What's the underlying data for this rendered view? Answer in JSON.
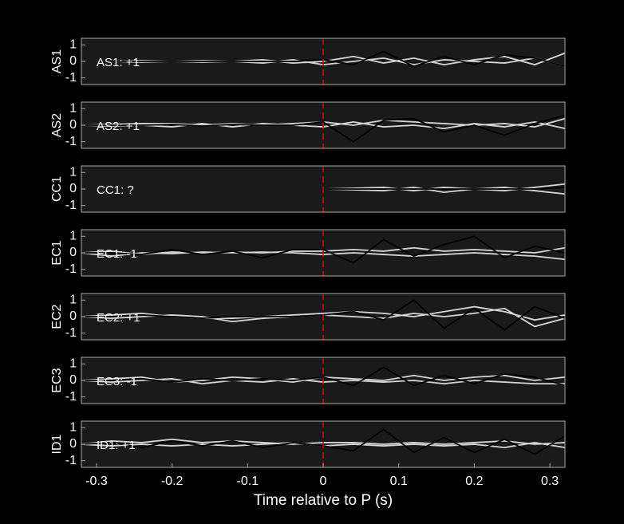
{
  "chart_data": [
    {
      "type": "line",
      "ylabel": "AS1",
      "annotation": "AS1: +1",
      "annotation_color": "#cc2020",
      "vline": 0,
      "vline_color": "#dd0000",
      "x": [
        -0.32,
        -0.28,
        -0.24,
        -0.2,
        -0.16,
        -0.12,
        -0.08,
        -0.04,
        0,
        0.04,
        0.08,
        0.12,
        0.16,
        0.2,
        0.24,
        0.28,
        0.32
      ],
      "xlim": [
        -0.32,
        0.32
      ],
      "ylim": [
        -1.4,
        1.4
      ],
      "yticks": [
        -1,
        0,
        1
      ],
      "series": [
        {
          "color": "#d6d6d6",
          "values": [
            0,
            0,
            0.05,
            0,
            -0.05,
            0,
            0.1,
            -0.1,
            0,
            0.3,
            -0.1,
            0.2,
            -0.2,
            0.1,
            0.3,
            -0.2,
            0.5
          ]
        },
        {
          "color": "#d6d6d6",
          "values": [
            0,
            0,
            -0.05,
            0,
            0.05,
            0,
            -0.1,
            0.1,
            -0.2,
            0,
            0.2,
            -0.2,
            0.1,
            0,
            -0.1,
            0.2,
            -0.3
          ]
        },
        {
          "color": "#000000",
          "values": [
            0,
            0,
            0,
            0,
            0,
            0,
            0,
            0,
            0.1,
            -0.2,
            0.6,
            -0.3,
            0.3,
            -0.2,
            0.4,
            0.2,
            -0.3
          ]
        }
      ]
    },
    {
      "type": "line",
      "ylabel": "AS2",
      "annotation": "AS2: +1",
      "annotation_color": "#cc2020",
      "vline": 0,
      "vline_color": "#dd0000",
      "x": [
        -0.32,
        -0.28,
        -0.24,
        -0.2,
        -0.16,
        -0.12,
        -0.08,
        -0.04,
        0,
        0.04,
        0.08,
        0.12,
        0.16,
        0.2,
        0.24,
        0.28,
        0.32
      ],
      "xlim": [
        -0.32,
        0.32
      ],
      "ylim": [
        -1.4,
        1.4
      ],
      "yticks": [
        -1,
        0,
        1
      ],
      "series": [
        {
          "color": "#d6d6d6",
          "values": [
            0,
            0.05,
            0.1,
            0.1,
            0,
            0.1,
            0,
            0.1,
            0.2,
            0,
            0.3,
            0.2,
            0.1,
            0,
            0.1,
            -0.1,
            0.4
          ]
        },
        {
          "color": "#d6d6d6",
          "values": [
            0,
            -0.05,
            0,
            -0.1,
            0.1,
            -0.1,
            0.1,
            0,
            -0.1,
            0.2,
            -0.1,
            0,
            -0.2,
            0.1,
            -0.1,
            0.2,
            -0.2
          ]
        },
        {
          "color": "#000000",
          "values": [
            0,
            0,
            0,
            0.05,
            -0.05,
            0.05,
            0,
            0,
            0.2,
            -1.0,
            0.3,
            0.4,
            -0.4,
            0,
            -0.6,
            0.1,
            0.6
          ]
        }
      ]
    },
    {
      "type": "line",
      "ylabel": "CC1",
      "annotation": "CC1: ?",
      "annotation_color": "#808080",
      "vline": 0,
      "vline_color": "#dd0000",
      "x": [
        -0.32,
        -0.28,
        -0.24,
        -0.2,
        -0.16,
        -0.12,
        -0.08,
        -0.04,
        0,
        0.04,
        0.08,
        0.12,
        0.16,
        0.2,
        0.24,
        0.28,
        0.32
      ],
      "xlim": [
        -0.32,
        0.32
      ],
      "ylim": [
        -1.4,
        1.4
      ],
      "yticks": [
        -1,
        0,
        1
      ],
      "series": [
        {
          "color": "#d6d6d6",
          "values": [
            0,
            0,
            0,
            0,
            0,
            0,
            0,
            0,
            0,
            0.05,
            0.1,
            -0.1,
            0.1,
            0,
            -0.1,
            0.1,
            0.3
          ]
        },
        {
          "color": "#d6d6d6",
          "values": [
            0,
            0,
            0,
            0,
            0,
            0,
            0,
            0,
            0,
            -0.05,
            -0.1,
            0.1,
            -0.2,
            0,
            0.1,
            -0.1,
            -0.3
          ]
        },
        {
          "color": "#000000",
          "values": [
            0,
            0,
            0,
            0,
            0,
            0,
            0,
            0,
            0,
            0,
            0,
            0,
            0,
            0,
            0,
            0,
            0.1
          ]
        }
      ]
    },
    {
      "type": "line",
      "ylabel": "EC1",
      "annotation": "EC1: -1",
      "annotation_color": "#1a1aa0",
      "vline": 0,
      "vline_color": "#dd0000",
      "x": [
        -0.32,
        -0.28,
        -0.24,
        -0.2,
        -0.16,
        -0.12,
        -0.08,
        -0.04,
        0,
        0.04,
        0.08,
        0.12,
        0.16,
        0.2,
        0.24,
        0.28,
        0.32
      ],
      "xlim": [
        -0.32,
        0.32
      ],
      "ylim": [
        -1.4,
        1.4
      ],
      "yticks": [
        -1,
        0,
        1
      ],
      "series": [
        {
          "color": "#d6d6d6",
          "values": [
            0,
            0.1,
            -0.1,
            0.05,
            0,
            0.05,
            0,
            0.1,
            0.1,
            0.2,
            0.1,
            0.3,
            0.1,
            0.2,
            0.1,
            0,
            0.3
          ]
        },
        {
          "color": "#d6d6d6",
          "values": [
            0,
            -0.2,
            0,
            -0.05,
            0.05,
            0,
            0.05,
            0,
            -0.1,
            0,
            -0.1,
            -0.2,
            -0.1,
            0,
            -0.1,
            -0.2,
            -0.4
          ]
        },
        {
          "color": "#000000",
          "values": [
            0,
            0,
            -0.1,
            0.2,
            -0.1,
            0.1,
            -0.3,
            0.2,
            0.2,
            -0.6,
            0.8,
            -0.2,
            0.5,
            1.0,
            -0.3,
            0.4,
            0
          ]
        }
      ]
    },
    {
      "type": "line",
      "ylabel": "EC2",
      "annotation": "EC2: +1",
      "annotation_color": "#cc2020",
      "vline": 0,
      "vline_color": "#dd0000",
      "x": [
        -0.32,
        -0.28,
        -0.24,
        -0.2,
        -0.16,
        -0.12,
        -0.08,
        -0.04,
        0,
        0.04,
        0.08,
        0.12,
        0.16,
        0.2,
        0.24,
        0.28,
        0.32
      ],
      "xlim": [
        -0.32,
        0.32
      ],
      "ylim": [
        -1.4,
        1.4
      ],
      "yticks": [
        -1,
        0,
        1
      ],
      "series": [
        {
          "color": "#d6d6d6",
          "values": [
            0,
            0.1,
            0.2,
            0,
            -0.1,
            -0.1,
            0,
            0.1,
            0.2,
            0.3,
            0.2,
            0,
            0.3,
            0.6,
            0.3,
            -0.2,
            0.1
          ]
        },
        {
          "color": "#d6d6d6",
          "values": [
            0,
            -0.1,
            0,
            0.1,
            0,
            -0.3,
            -0.1,
            0,
            0.1,
            0,
            -0.1,
            0.2,
            0,
            0.2,
            0.5,
            -0.6,
            -0.1
          ]
        },
        {
          "color": "#000000",
          "values": [
            0,
            0,
            0.1,
            0,
            -0.1,
            0,
            0,
            0,
            0.1,
            0.3,
            -0.2,
            1.0,
            -0.7,
            0.5,
            -0.8,
            0.6,
            -0.1
          ]
        }
      ]
    },
    {
      "type": "line",
      "ylabel": "EC3",
      "annotation": "EC3: -1",
      "annotation_color": "#1a1aa0",
      "vline": 0,
      "vline_color": "#dd0000",
      "x": [
        -0.32,
        -0.28,
        -0.24,
        -0.2,
        -0.16,
        -0.12,
        -0.08,
        -0.04,
        0,
        0.04,
        0.08,
        0.12,
        0.16,
        0.2,
        0.24,
        0.28,
        0.32
      ],
      "xlim": [
        -0.32,
        0.32
      ],
      "ylim": [
        -1.4,
        1.4
      ],
      "yticks": [
        -1,
        0,
        1
      ],
      "series": [
        {
          "color": "#d6d6d6",
          "values": [
            0,
            0.1,
            0.2,
            -0.1,
            0,
            0.2,
            0.1,
            -0.1,
            0.2,
            0.1,
            0,
            0.3,
            0,
            0.2,
            0.3,
            0,
            0.2
          ]
        },
        {
          "color": "#d6d6d6",
          "values": [
            0,
            -0.1,
            0,
            0.1,
            -0.2,
            0,
            -0.1,
            0.1,
            -0.1,
            0,
            -0.1,
            0,
            -0.2,
            0,
            -0.1,
            -0.2,
            -0.2
          ]
        },
        {
          "color": "#000000",
          "values": [
            0,
            0,
            0.1,
            -0.1,
            0.1,
            0,
            0.1,
            0,
            0.2,
            -0.3,
            0.8,
            -0.3,
            0.3,
            -0.2,
            0.4,
            0.2,
            -0.3
          ]
        }
      ]
    },
    {
      "type": "line",
      "ylabel": "ID1",
      "annotation": "ID1: +1",
      "annotation_color": "#cc2020",
      "vline": 0,
      "vline_color": "#dd0000",
      "x": [
        -0.32,
        -0.28,
        -0.24,
        -0.2,
        -0.16,
        -0.12,
        -0.08,
        -0.04,
        0,
        0.04,
        0.08,
        0.12,
        0.16,
        0.2,
        0.24,
        0.28,
        0.32
      ],
      "xlim": [
        -0.32,
        0.32
      ],
      "ylim": [
        -1.4,
        1.4
      ],
      "yticks": [
        -1,
        0,
        1
      ],
      "xticks": [
        -0.3,
        -0.2,
        -0.1,
        0,
        0.1,
        0.2,
        0.3
      ],
      "xlabel": "Time relative to P (s)",
      "series": [
        {
          "color": "#d6d6d6",
          "values": [
            0,
            0.2,
            0.1,
            0.3,
            0.1,
            0.2,
            0.1,
            0,
            0.1,
            0.1,
            0,
            0.1,
            0,
            0.1,
            0.2,
            0,
            0.1
          ]
        },
        {
          "color": "#d6d6d6",
          "values": [
            0,
            -0.1,
            0,
            -0.1,
            0,
            -0.1,
            0,
            0.1,
            -0.1,
            0,
            -0.1,
            0,
            -0.1,
            0,
            -0.2,
            0.1,
            -0.2
          ]
        },
        {
          "color": "#000000",
          "values": [
            0,
            0.1,
            -0.2,
            0.2,
            -0.1,
            0.2,
            -0.2,
            0.1,
            -0.1,
            -0.4,
            0.9,
            -0.5,
            0.4,
            -0.5,
            0.3,
            -0.6,
            0.5
          ]
        }
      ]
    }
  ]
}
